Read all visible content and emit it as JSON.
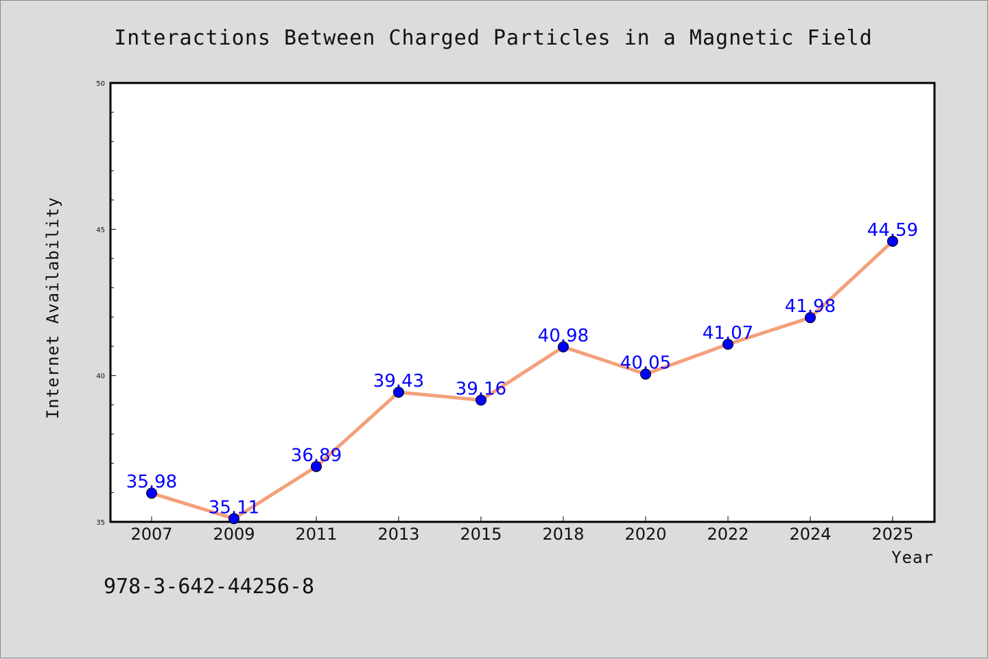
{
  "chart_data": {
    "type": "line",
    "title": "Interactions Between Charged Particles in a Magnetic Field",
    "xlabel": "Year",
    "ylabel": "Internet Availability",
    "categories": [
      "2007",
      "2009",
      "2011",
      "2013",
      "2015",
      "2018",
      "2020",
      "2022",
      "2024",
      "2025"
    ],
    "series": [
      {
        "values": [
          35.98,
          35.11,
          36.89,
          39.43,
          39.16,
          40.98,
          40.05,
          41.07,
          41.98,
          44.59
        ],
        "labels": [
          "35.98",
          "35.11",
          "36.89",
          "39.43",
          "39.16",
          "40.98",
          "40.05",
          "41.07",
          "41.98",
          "44.59"
        ],
        "line_color": "#f4a07a",
        "marker_color": "#0000ff"
      }
    ],
    "ylim": [
      35,
      50
    ],
    "yticks": [
      "35",
      "40",
      "45",
      "50"
    ],
    "grid": false,
    "legend": "none"
  },
  "footer": {
    "isbn": "978-3-642-44256-8"
  },
  "colors": {
    "background": "#dcdcdc",
    "plot_background": "#ffffff",
    "data_label": "#0000ff"
  }
}
